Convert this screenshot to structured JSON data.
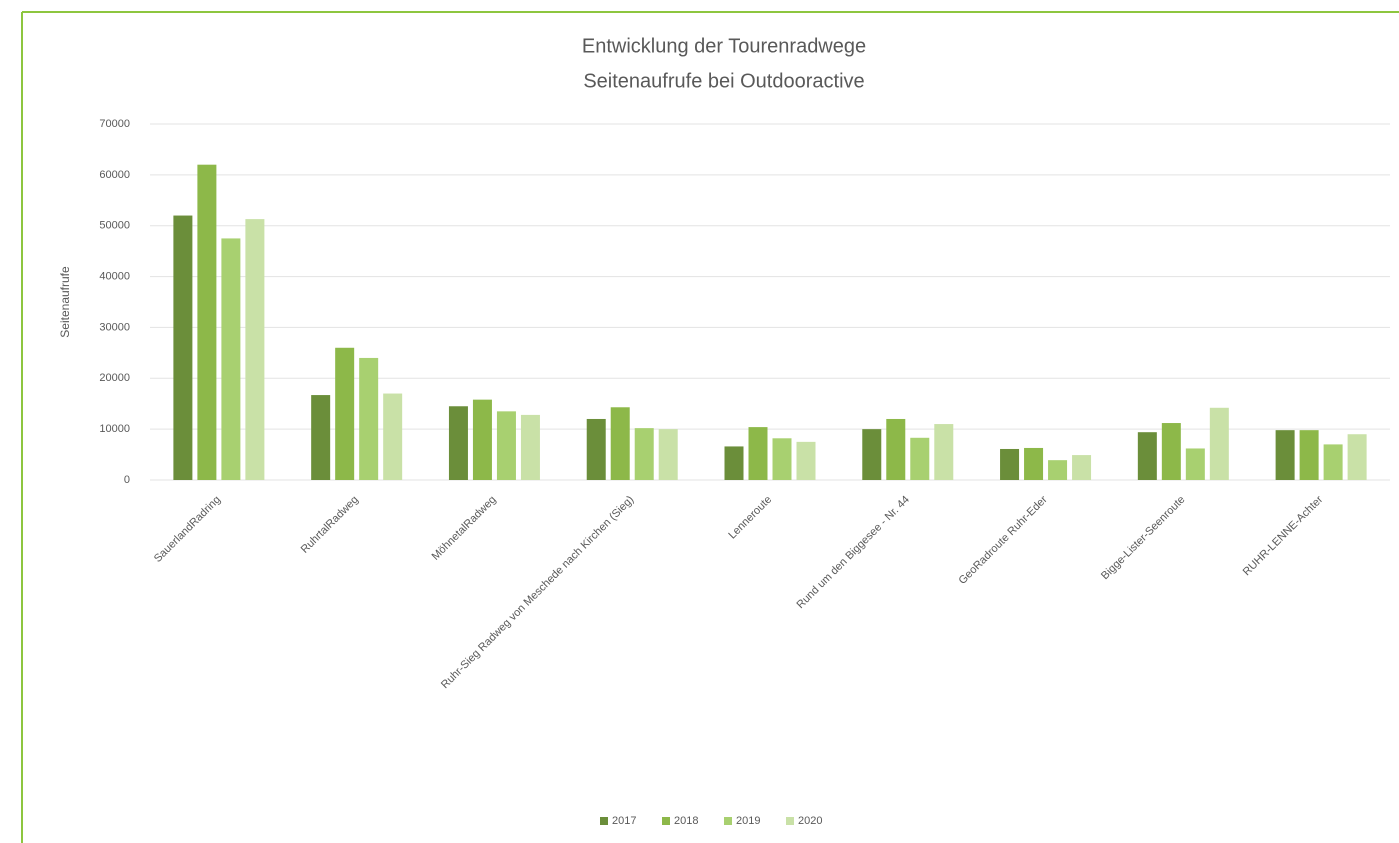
{
  "chart_data": {
    "type": "bar",
    "title": "Entwicklung der Tourenradwege",
    "subtitle": "Seitenaufrufe bei Outdooractive",
    "y_label": "Seitenaufrufe",
    "categories": [
      "SauerlandRadring",
      "RuhrtalRadweg",
      "MöhnetalRadweg",
      "Ruhr-Sieg Radweg von Meschede nach Kirchen (Sieg)",
      "Lenneroute",
      "Rund um den Biggesee - Nr. 44",
      "GeoRadroute Ruhr-Eder",
      "Bigge-Lister-Seenroute",
      "RUHR-LENNE-Achter"
    ],
    "series": [
      {
        "name": "2017",
        "color": "#6b8e3a",
        "values": [
          52000,
          16700,
          14500,
          12000,
          6600,
          10000,
          6100,
          9400,
          9800
        ]
      },
      {
        "name": "2018",
        "color": "#8db849",
        "values": [
          62000,
          26000,
          15800,
          14300,
          10400,
          12000,
          6300,
          11200,
          9800
        ]
      },
      {
        "name": "2019",
        "color": "#a8d070",
        "values": [
          47500,
          24000,
          13500,
          10200,
          8200,
          8300,
          3900,
          6200,
          7000
        ]
      },
      {
        "name": "2020",
        "color": "#c9e1a7",
        "values": [
          51300,
          17000,
          12800,
          10000,
          7500,
          11000,
          4900,
          14200,
          9000
        ]
      }
    ],
    "ylim": [
      0,
      70000
    ],
    "yticks": [
      0,
      10000,
      20000,
      30000,
      40000,
      50000,
      60000,
      70000
    ],
    "grid": true,
    "legend": "bottom"
  }
}
